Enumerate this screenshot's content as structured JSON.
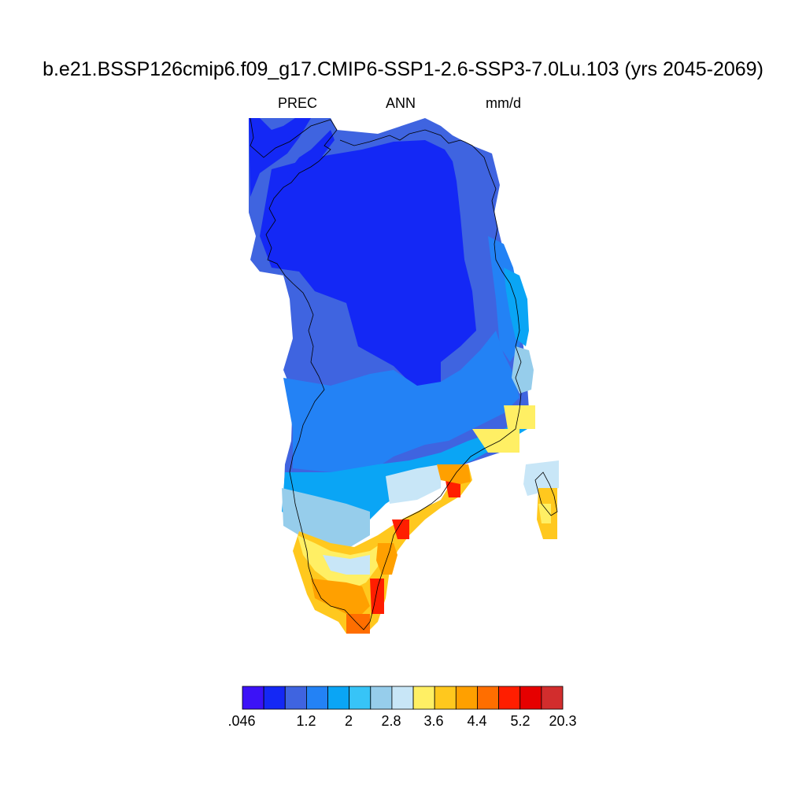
{
  "title": "b.e21.BSSP126cmip6.f09_g17.CMIP6-SSP1-2.6-SSP3-7.0Lu.103 (yrs 2045-2069)",
  "variable": "PREC",
  "season": "ANN",
  "units": "mm/d",
  "colorbar": {
    "colors": [
      "#3c12f7",
      "#1428f5",
      "#3f64e0",
      "#2382f5",
      "#0aa5f5",
      "#37c4f7",
      "#96cdeb",
      "#c8e6f7",
      "#ffef64",
      "#ffc81e",
      "#ffa000",
      "#ff6e00",
      "#ff1e00",
      "#e60000",
      "#d22d2d"
    ],
    "labels": [
      ".046",
      "1.2",
      "2",
      "2.8",
      "3.6",
      "4.4",
      "5.2",
      "20.3"
    ]
  },
  "map_rows": [
    [
      "1111111111111111111111111111111",
      "a"
    ],
    [
      "2222222222211111111111111111112",
      "a"
    ],
    [
      "2222222222211111111111111111223",
      "a"
    ]
  ]
}
